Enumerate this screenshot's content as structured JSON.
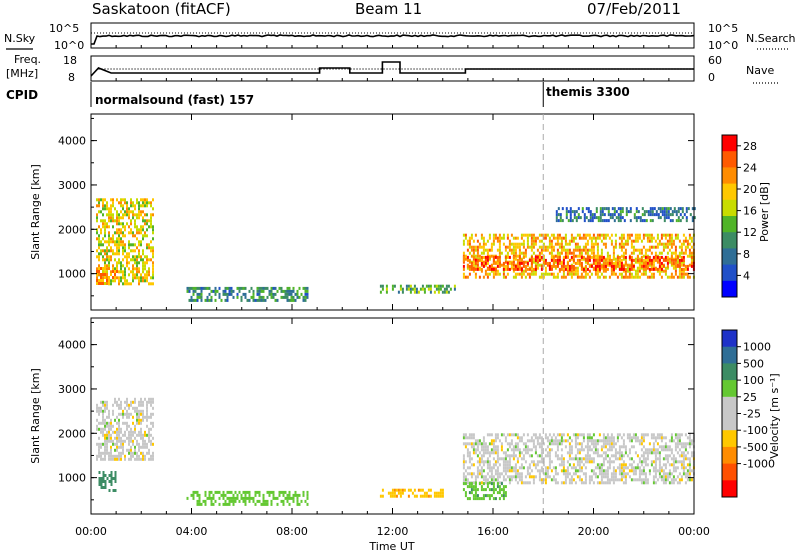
{
  "header": {
    "station": "Saskatoon (fitACF)",
    "beam": "Beam 11",
    "date": "07/Feb/2011"
  },
  "top_panels": {
    "nsky_label": "N.Sky",
    "nsearch_label": "N.Search",
    "noise_left_ticks": [
      "10^5",
      "10^0"
    ],
    "noise_right_ticks": [
      "10^5",
      "10^0"
    ],
    "freq_label_1": "Freq.",
    "freq_label_2": "[MHz]",
    "freq_ticks": [
      "18",
      "8"
    ],
    "nave_label": "Nave",
    "nave_ticks": [
      "60",
      "0"
    ],
    "cpid_label": "CPID",
    "cpid_entries": [
      {
        "name": "normalsound (fast) 157",
        "start_hour": 0
      },
      {
        "name": "themis 3300",
        "start_hour": 18
      }
    ]
  },
  "colors": {
    "power_scale": [
      "#0000ff",
      "#2050c8",
      "#2f6e96",
      "#3c8c64",
      "#50b428",
      "#c8dc00",
      "#ffc800",
      "#ff8c00",
      "#ff5a00",
      "#ff0000"
    ],
    "velocity_scale": [
      "#1e32c8",
      "#2f6e96",
      "#3c8c64",
      "#64c832",
      "#c8c8c8",
      "#c8c8c8",
      "#ffc800",
      "#ff8c00",
      "#ff5000",
      "#ff0000"
    ]
  },
  "chart_data": [
    {
      "type": "heatmap",
      "panel": "power",
      "title": "",
      "xlabel": "Time UT",
      "ylabel": "Slant Range [km]",
      "xlim": [
        0,
        24
      ],
      "ylim": [
        180,
        4600
      ],
      "x_ticks": [
        "00:00",
        "04:00",
        "08:00",
        "12:00",
        "16:00",
        "20:00",
        "00:00"
      ],
      "y_ticks": [
        "1000",
        "2000",
        "3000",
        "4000"
      ],
      "colorbar_label": "Power [dB]",
      "colorbar_ticks": [
        "4",
        "8",
        "12",
        "16",
        "20",
        "24",
        "28"
      ],
      "colorbar_range": [
        0,
        30
      ],
      "echo_regions": [
        {
          "t0": 0.2,
          "t1": 2.5,
          "r0": 800,
          "r1": 2700,
          "level": 18
        },
        {
          "t0": 0.2,
          "t1": 1.0,
          "r0": 750,
          "r1": 1150,
          "level": 22
        },
        {
          "t0": 3.8,
          "t1": 8.6,
          "r0": 400,
          "r1": 700,
          "level": 10
        },
        {
          "t0": 11.5,
          "t1": 14.5,
          "r0": 550,
          "r1": 750,
          "level": 12
        },
        {
          "t0": 14.8,
          "t1": 24.0,
          "r0": 900,
          "r1": 1900,
          "level": 20
        },
        {
          "t0": 14.8,
          "t1": 24.0,
          "r0": 1100,
          "r1": 1400,
          "level": 25
        },
        {
          "t0": 18.5,
          "t1": 24.0,
          "r0": 2200,
          "r1": 2500,
          "level": 8
        }
      ]
    },
    {
      "type": "heatmap",
      "panel": "velocity",
      "title": "",
      "xlabel": "Time UT",
      "ylabel": "Slant Range [km]",
      "xlim": [
        0,
        24
      ],
      "ylim": [
        180,
        4600
      ],
      "x_ticks": [
        "00:00",
        "04:00",
        "08:00",
        "12:00",
        "16:00",
        "20:00",
        "00:00"
      ],
      "y_ticks": [
        "1000",
        "2000",
        "3000",
        "4000"
      ],
      "colorbar_label": "Velocity [m s⁻¹]",
      "colorbar_ticks": [
        "1000",
        "500",
        "100",
        "25",
        "-25",
        "-100",
        "-500",
        "-1000"
      ],
      "echo_regions": [
        {
          "t0": 0.2,
          "t1": 2.5,
          "r0": 1400,
          "r1": 2800,
          "velocity": 0
        },
        {
          "t0": 0.3,
          "t1": 1.0,
          "r0": 700,
          "r1": 1150,
          "velocity": 150
        },
        {
          "t0": 3.8,
          "t1": 8.6,
          "r0": 400,
          "r1": 700,
          "velocity": 60
        },
        {
          "t0": 11.5,
          "t1": 14.0,
          "r0": 550,
          "r1": 750,
          "velocity": -80
        },
        {
          "t0": 14.8,
          "t1": 24.0,
          "r0": 900,
          "r1": 2000,
          "velocity": 0
        },
        {
          "t0": 14.8,
          "t1": 16.5,
          "r0": 500,
          "r1": 900,
          "velocity": 80
        }
      ]
    }
  ]
}
